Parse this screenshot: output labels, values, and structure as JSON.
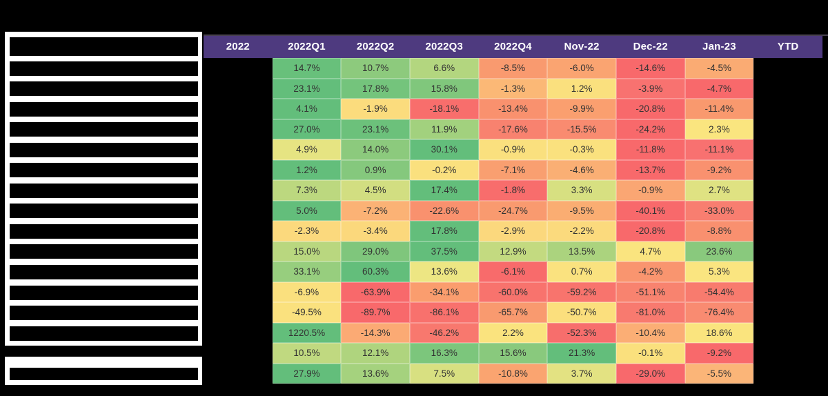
{
  "meta": {
    "description": "Performance heatmap report with redacted title, row labels, 2022 column and YTD column",
    "background": "#000000"
  },
  "styles": {
    "header_bg": "#4E3A7F",
    "header_text_color": "#FFFFFF",
    "cell_text_color": "#333333",
    "redaction_color": "#000000",
    "panel_color": "#FFFFFF"
  },
  "left_panel": {
    "header_bar_count": 1,
    "row_bar_count": 14,
    "footer_bar_count": 1
  },
  "chart_data": {
    "type": "heatmap",
    "title": "",
    "columns": [
      "2022",
      "2022Q1",
      "2022Q2",
      "2022Q3",
      "2022Q4",
      "Nov-22",
      "Dec-22",
      "Jan-23",
      "YTD"
    ],
    "value_columns": [
      "2022Q1",
      "2022Q2",
      "2022Q3",
      "2022Q4",
      "Nov-22",
      "Dec-22",
      "Jan-23"
    ],
    "redacted_columns": [
      "2022",
      "YTD"
    ],
    "row_labels_redacted": true,
    "legend": "per-row red-yellow-green scale",
    "colormap": {
      "high": "#63BE7B",
      "mid": "#FAE07E",
      "low": "#F8696B"
    },
    "rows": [
      {
        "values": [
          "14.7%",
          "10.7%",
          "6.6%",
          "-8.5%",
          "-6.0%",
          "-14.6%",
          "-4.5%"
        ],
        "colors": [
          "#68C07B",
          "#8DCA7D",
          "#B3D67F",
          "#F99A6F",
          "#FAA471",
          "#F8696B",
          "#FAAB73"
        ]
      },
      {
        "values": [
          "23.1%",
          "17.8%",
          "15.8%",
          "-1.3%",
          "1.2%",
          "-3.9%",
          "-4.7%"
        ],
        "colors": [
          "#63BE7B",
          "#74C47C",
          "#80C77C",
          "#FBB876",
          "#FAE07E",
          "#F87270",
          "#F8696B"
        ]
      },
      {
        "values": [
          "4.1%",
          "-1.9%",
          "-18.1%",
          "-13.4%",
          "-9.9%",
          "-20.8%",
          "-11.4%"
        ],
        "colors": [
          "#63BE7B",
          "#FBDC7D",
          "#F86E6C",
          "#F9916E",
          "#FA9F6F",
          "#F8696B",
          "#F9996E"
        ]
      },
      {
        "values": [
          "27.0%",
          "23.1%",
          "11.9%",
          "-17.6%",
          "-15.5%",
          "-24.2%",
          "2.3%"
        ],
        "colors": [
          "#63BE7B",
          "#6CC17B",
          "#A2D17E",
          "#F8826F",
          "#F98B70",
          "#F8696B",
          "#FAE57F"
        ]
      },
      {
        "values": [
          "4.9%",
          "14.0%",
          "30.1%",
          "-0.9%",
          "-0.3%",
          "-11.8%",
          "-11.1%"
        ],
        "colors": [
          "#E6E482",
          "#8CCA7D",
          "#63BE7B",
          "#FAE07E",
          "#FAE17E",
          "#F8696B",
          "#F87170"
        ]
      },
      {
        "values": [
          "1.2%",
          "0.9%",
          "-0.2%",
          "-7.1%",
          "-4.6%",
          "-13.7%",
          "-9.2%"
        ],
        "colors": [
          "#63BE7B",
          "#85C87D",
          "#FAE07E",
          "#F99F70",
          "#FAAF74",
          "#F8696B",
          "#F9916F"
        ]
      },
      {
        "values": [
          "7.3%",
          "4.5%",
          "17.4%",
          "-1.8%",
          "3.3%",
          "-0.9%",
          "2.7%"
        ],
        "colors": [
          "#BCD87F",
          "#D2DE81",
          "#63BE7B",
          "#F86D6C",
          "#D7E081",
          "#FAA673",
          "#DFE282"
        ]
      },
      {
        "values": [
          "5.0%",
          "-7.2%",
          "-22.6%",
          "-24.7%",
          "-9.5%",
          "-40.1%",
          "-33.0%"
        ],
        "colors": [
          "#63BE7B",
          "#FBB275",
          "#F9916E",
          "#F99A6F",
          "#FAAD72",
          "#F8696B",
          "#F87E70"
        ]
      },
      {
        "values": [
          "-2.3%",
          "-3.4%",
          "17.8%",
          "-2.9%",
          "-2.2%",
          "-20.8%",
          "-8.8%"
        ],
        "colors": [
          "#FBD97D",
          "#FBD87C",
          "#63BE7B",
          "#FBD87D",
          "#FBDA7D",
          "#F8696B",
          "#F9906F"
        ]
      },
      {
        "values": [
          "15.0%",
          "29.0%",
          "37.5%",
          "12.9%",
          "13.5%",
          "4.7%",
          "23.6%"
        ],
        "colors": [
          "#B9D77F",
          "#7FC67C",
          "#63BE7B",
          "#C3DA80",
          "#ABD37E",
          "#FAE47F",
          "#89C97D"
        ]
      },
      {
        "values": [
          "33.1%",
          "60.3%",
          "13.6%",
          "-6.1%",
          "0.7%",
          "-4.2%",
          "5.3%"
        ],
        "colors": [
          "#97CE7E",
          "#63BE7B",
          "#EDE683",
          "#F86B6B",
          "#FAE27F",
          "#F9956F",
          "#FAE580"
        ]
      },
      {
        "values": [
          "-6.9%",
          "-63.9%",
          "-34.1%",
          "-60.0%",
          "-59.2%",
          "-51.1%",
          "-54.4%"
        ],
        "colors": [
          "#FAE07E",
          "#F8696B",
          "#FA9D6E",
          "#F8736D",
          "#F8746D",
          "#F8836F",
          "#F87B6E"
        ]
      },
      {
        "values": [
          "-49.5%",
          "-89.7%",
          "-86.1%",
          "-65.7%",
          "-50.7%",
          "-81.0%",
          "-76.4%"
        ],
        "colors": [
          "#FAE17E",
          "#F8696B",
          "#F8716D",
          "#F99A6F",
          "#FBDF7D",
          "#F87A6F",
          "#F98B71"
        ]
      },
      {
        "values": [
          "1220.5%",
          "-14.3%",
          "-46.2%",
          "2.2%",
          "-52.3%",
          "-10.4%",
          "18.6%"
        ],
        "colors": [
          "#63BE7B",
          "#FBAA74",
          "#F8786E",
          "#FAE37E",
          "#F76E6C",
          "#FBAE75",
          "#FAE47E"
        ]
      },
      {
        "values": [
          "10.5%",
          "12.1%",
          "16.3%",
          "15.6%",
          "21.3%",
          "-0.1%",
          "-9.2%"
        ],
        "colors": [
          "#C0D980",
          "#AFD47E",
          "#7CC67C",
          "#89C97D",
          "#63BE7B",
          "#FAE07D",
          "#F8696B"
        ]
      },
      {
        "values": [
          "27.9%",
          "13.6%",
          "7.5%",
          "-10.8%",
          "3.7%",
          "-29.0%",
          "-5.5%"
        ],
        "colors": [
          "#63BE7B",
          "#A5D27E",
          "#D8E081",
          "#FAA470",
          "#E3E282",
          "#F8696C",
          "#FBB578"
        ]
      }
    ]
  }
}
